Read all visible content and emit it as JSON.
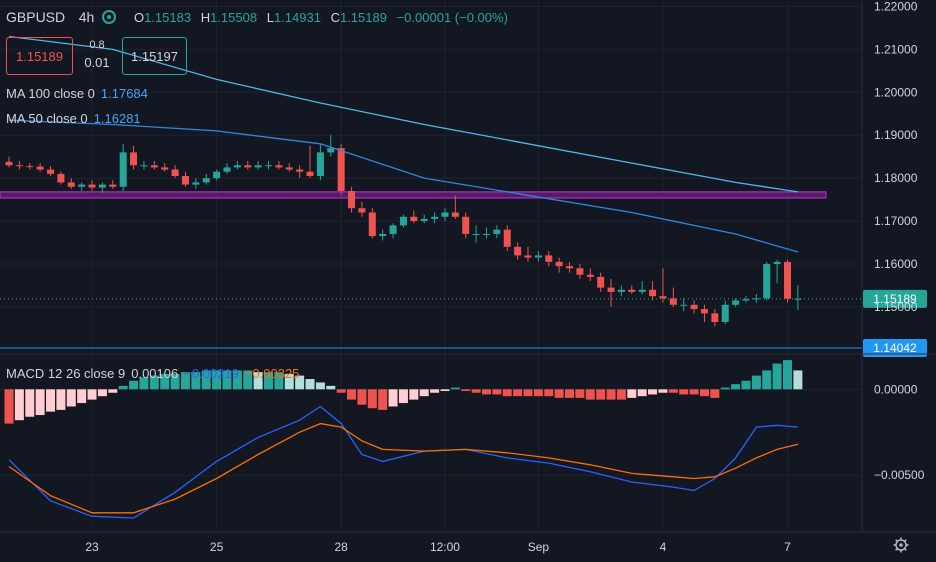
{
  "symbol": "GBPUSD",
  "interval": "4h",
  "ohlc": {
    "o_label": "O",
    "o": "1.15183",
    "h_label": "H",
    "h": "1.15508",
    "l_label": "L",
    "l": "1.14931",
    "c_label": "C",
    "c": "1.15189",
    "change": "−0.00001 (−0.00%)"
  },
  "trade": {
    "sell_price": "1.15189",
    "buy_price": "1.15197",
    "spread_top": "0.8",
    "spread_bottom": "0.01"
  },
  "ma100": {
    "label": "MA 100 close 0",
    "value": "1.17684"
  },
  "ma50": {
    "label": "MA 50 close 0",
    "value": "1.16281"
  },
  "macd_legend": {
    "label": "MACD 12 26 close 9",
    "hist": "0.00106",
    "macd": "−0.00219",
    "signal": "−0.00325"
  },
  "price_axis": {
    "ticks": [
      "1.22000",
      "1.21000",
      "1.20000",
      "1.19000",
      "1.18000",
      "1.17000",
      "1.16000",
      "1.15000"
    ],
    "last_price": "1.15189",
    "alert_price": "1.14042"
  },
  "macd_axis": {
    "ticks": [
      "0.00000",
      "−0.00500"
    ]
  },
  "time_axis": {
    "labels": [
      "23",
      "25",
      "28",
      "12:00",
      "Sep",
      "4",
      "7"
    ]
  },
  "colors": {
    "up": "#26a69a",
    "down": "#ef5350",
    "ma100": "#4fb6e6",
    "ma50": "#2e86de",
    "zone": "#9c27b0",
    "macd": "#2962ff",
    "signal": "#ff6d00",
    "hist_up": "#26a69a",
    "hist_up_weak": "#b2dfdb",
    "hist_down": "#ef5350",
    "hist_down_weak": "#ffcdd2"
  },
  "chart_data": [
    {
      "type": "candlestick",
      "title": "GBPUSD 4h",
      "ylim": [
        1.1395,
        1.2215
      ],
      "x": [
        0,
        1,
        2,
        3,
        4,
        5,
        6,
        7,
        8,
        9,
        10,
        11,
        12,
        13,
        14,
        15,
        16,
        17,
        18,
        19,
        20,
        21,
        22,
        23,
        24,
        25,
        26,
        27,
        28,
        29,
        30,
        31,
        32,
        33,
        34,
        35,
        36,
        37,
        38,
        39,
        40,
        41,
        42,
        43,
        44,
        45,
        46,
        47,
        48,
        49,
        50,
        51,
        52,
        53,
        54,
        55,
        56,
        57,
        58,
        59,
        60,
        61,
        62,
        63,
        64,
        65,
        66,
        67,
        68,
        69,
        70,
        71,
        72,
        73,
        74,
        75,
        76
      ],
      "open": [
        1.1838,
        1.183,
        1.1828,
        1.1827,
        1.182,
        1.181,
        1.179,
        1.178,
        1.1785,
        1.1778,
        1.1785,
        1.178,
        1.186,
        1.183,
        1.183,
        1.1825,
        1.182,
        1.1805,
        1.1785,
        1.179,
        1.18,
        1.1815,
        1.1825,
        1.183,
        1.1825,
        1.183,
        1.183,
        1.1825,
        1.182,
        1.1815,
        1.1805,
        1.186,
        1.187,
        1.177,
        1.173,
        1.172,
        1.1665,
        1.167,
        1.169,
        1.171,
        1.17,
        1.1705,
        1.171,
        1.172,
        1.171,
        1.167,
        1.167,
        1.167,
        1.168,
        1.164,
        1.162,
        1.1615,
        1.162,
        1.1605,
        1.1595,
        1.159,
        1.1575,
        1.157,
        1.1545,
        1.1535,
        1.154,
        1.1535,
        1.154,
        1.1525,
        1.152,
        1.1505,
        1.1505,
        1.1495,
        1.1485,
        1.1465,
        1.1505,
        1.1515,
        1.1518,
        1.152,
        1.16,
        1.1605,
        1.1519
      ],
      "high": [
        1.185,
        1.184,
        1.1835,
        1.1835,
        1.1828,
        1.1815,
        1.18,
        1.179,
        1.1795,
        1.179,
        1.1795,
        1.188,
        1.1875,
        1.184,
        1.184,
        1.1835,
        1.183,
        1.1815,
        1.18,
        1.181,
        1.182,
        1.1835,
        1.184,
        1.184,
        1.184,
        1.184,
        1.184,
        1.1835,
        1.183,
        1.1875,
        1.188,
        1.19,
        1.188,
        1.178,
        1.1745,
        1.173,
        1.168,
        1.1695,
        1.1715,
        1.1725,
        1.1715,
        1.172,
        1.173,
        1.176,
        1.172,
        1.169,
        1.1685,
        1.169,
        1.169,
        1.165,
        1.164,
        1.163,
        1.163,
        1.1615,
        1.1605,
        1.16,
        1.159,
        1.158,
        1.1565,
        1.155,
        1.155,
        1.156,
        1.156,
        1.159,
        1.1545,
        1.152,
        1.1515,
        1.1505,
        1.1495,
        1.1515,
        1.152,
        1.1525,
        1.153,
        1.1605,
        1.161,
        1.161,
        1.1551
      ],
      "low": [
        1.1825,
        1.182,
        1.182,
        1.1815,
        1.1805,
        1.1785,
        1.1775,
        1.177,
        1.177,
        1.1765,
        1.1775,
        1.177,
        1.182,
        1.182,
        1.182,
        1.1815,
        1.18,
        1.178,
        1.1775,
        1.1785,
        1.1795,
        1.181,
        1.182,
        1.182,
        1.182,
        1.182,
        1.182,
        1.1815,
        1.18,
        1.18,
        1.1795,
        1.185,
        1.176,
        1.172,
        1.171,
        1.166,
        1.1655,
        1.166,
        1.1685,
        1.1695,
        1.1695,
        1.1695,
        1.17,
        1.1705,
        1.166,
        1.165,
        1.166,
        1.166,
        1.163,
        1.161,
        1.1605,
        1.1605,
        1.1595,
        1.158,
        1.158,
        1.1565,
        1.156,
        1.1535,
        1.15,
        1.1525,
        1.153,
        1.153,
        1.1515,
        1.151,
        1.15,
        1.149,
        1.1485,
        1.1465,
        1.1455,
        1.146,
        1.15,
        1.151,
        1.151,
        1.1515,
        1.1555,
        1.151,
        1.1493
      ],
      "close": [
        1.183,
        1.1828,
        1.1827,
        1.182,
        1.181,
        1.179,
        1.178,
        1.1785,
        1.1778,
        1.1785,
        1.178,
        1.186,
        1.183,
        1.183,
        1.1825,
        1.182,
        1.1805,
        1.1785,
        1.179,
        1.18,
        1.1815,
        1.1825,
        1.183,
        1.1825,
        1.183,
        1.183,
        1.1825,
        1.182,
        1.1815,
        1.1805,
        1.186,
        1.187,
        1.177,
        1.173,
        1.172,
        1.1665,
        1.167,
        1.169,
        1.171,
        1.17,
        1.1705,
        1.171,
        1.172,
        1.171,
        1.167,
        1.167,
        1.167,
        1.168,
        1.164,
        1.162,
        1.1615,
        1.162,
        1.1605,
        1.1595,
        1.159,
        1.1575,
        1.157,
        1.1545,
        1.1535,
        1.154,
        1.1535,
        1.154,
        1.1525,
        1.152,
        1.1505,
        1.1505,
        1.1495,
        1.1485,
        1.1465,
        1.1505,
        1.1515,
        1.1518,
        1.152,
        1.16,
        1.1605,
        1.1519,
        1.1519
      ],
      "ma100": {
        "x": [
          0,
          10,
          20,
          30,
          40,
          50,
          60,
          70,
          76
        ],
        "y": [
          1.213,
          1.21,
          1.203,
          1.1975,
          1.1925,
          1.188,
          1.1835,
          1.179,
          1.1768
        ]
      },
      "ma50": {
        "x": [
          0,
          10,
          20,
          30,
          40,
          50,
          60,
          70,
          76
        ],
        "y": [
          1.1935,
          1.1925,
          1.191,
          1.188,
          1.18,
          1.176,
          1.172,
          1.167,
          1.1628
        ]
      },
      "zone": {
        "y": [
          1.1758,
          1.1768
        ],
        "x_end": 76
      },
      "last_price": 1.15189,
      "alert_price": 1.14042
    },
    {
      "type": "bar",
      "title": "MACD 12 26 close 9",
      "ylim": [
        -0.0082,
        0.002
      ],
      "x": [
        0,
        1,
        2,
        3,
        4,
        5,
        6,
        7,
        8,
        9,
        10,
        11,
        12,
        13,
        14,
        15,
        16,
        17,
        18,
        19,
        20,
        21,
        22,
        23,
        24,
        25,
        26,
        27,
        28,
        29,
        30,
        31,
        32,
        33,
        34,
        35,
        36,
        37,
        38,
        39,
        40,
        41,
        42,
        43,
        44,
        45,
        46,
        47,
        48,
        49,
        50,
        51,
        52,
        53,
        54,
        55,
        56,
        57,
        58,
        59,
        60,
        61,
        62,
        63,
        64,
        65,
        66,
        67,
        68,
        69,
        70,
        71,
        72,
        73,
        74,
        75,
        76
      ],
      "histogram": [
        -0.002,
        -0.0018,
        -0.0016,
        -0.0015,
        -0.0013,
        -0.0012,
        -0.001,
        -0.0008,
        -0.0006,
        -0.0004,
        -0.0002,
        0.0002,
        0.0005,
        0.0007,
        0.0008,
        0.0009,
        0.0009,
        0.001,
        0.001,
        0.0011,
        0.0011,
        0.0011,
        0.0011,
        0.0011,
        0.001,
        0.001,
        0.001,
        0.0009,
        0.0008,
        0.0006,
        0.0004,
        0.0002,
        -0.0002,
        -0.0006,
        -0.0009,
        -0.0011,
        -0.0012,
        -0.001,
        -0.0008,
        -0.0006,
        -0.0004,
        -0.0002,
        -0.0001,
        0.0001,
        -0.0001,
        -0.0002,
        -0.0003,
        -0.0003,
        -0.0004,
        -0.0004,
        -0.0004,
        -0.0004,
        -0.0004,
        -0.0005,
        -0.0005,
        -0.0005,
        -0.0006,
        -0.0006,
        -0.0006,
        -0.0006,
        -0.0005,
        -0.0004,
        -0.0003,
        -0.0002,
        -0.0002,
        -0.0003,
        -0.0003,
        -0.0004,
        -0.0005,
        0.0001,
        0.0003,
        0.0005,
        0.0008,
        0.0011,
        0.0015,
        0.0017,
        0.0011
      ],
      "macd": {
        "x": [
          0,
          4,
          8,
          12,
          16,
          20,
          24,
          28,
          30,
          32,
          34,
          36,
          40,
          44,
          48,
          52,
          56,
          60,
          64,
          66,
          68,
          70,
          72,
          74,
          76
        ],
        "y": [
          -0.0041,
          -0.0065,
          -0.0074,
          -0.0075,
          -0.006,
          -0.0042,
          -0.0028,
          -0.0018,
          -0.001,
          -0.002,
          -0.0038,
          -0.0042,
          -0.0036,
          -0.0035,
          -0.004,
          -0.0043,
          -0.0048,
          -0.0054,
          -0.0057,
          -0.0059,
          -0.0052,
          -0.004,
          -0.0022,
          -0.0021,
          -0.0022
        ]
      },
      "signal": {
        "x": [
          0,
          4,
          8,
          12,
          16,
          20,
          24,
          28,
          30,
          32,
          34,
          36,
          40,
          44,
          48,
          52,
          56,
          60,
          64,
          66,
          68,
          70,
          72,
          74,
          76
        ],
        "y": [
          -0.0045,
          -0.0062,
          -0.0072,
          -0.0072,
          -0.0064,
          -0.0052,
          -0.0038,
          -0.0025,
          -0.002,
          -0.0022,
          -0.003,
          -0.0035,
          -0.0036,
          -0.0035,
          -0.0037,
          -0.004,
          -0.0044,
          -0.0049,
          -0.0051,
          -0.0052,
          -0.0051,
          -0.0046,
          -0.004,
          -0.0035,
          -0.0032
        ]
      },
      "zero_line": 0
    }
  ]
}
